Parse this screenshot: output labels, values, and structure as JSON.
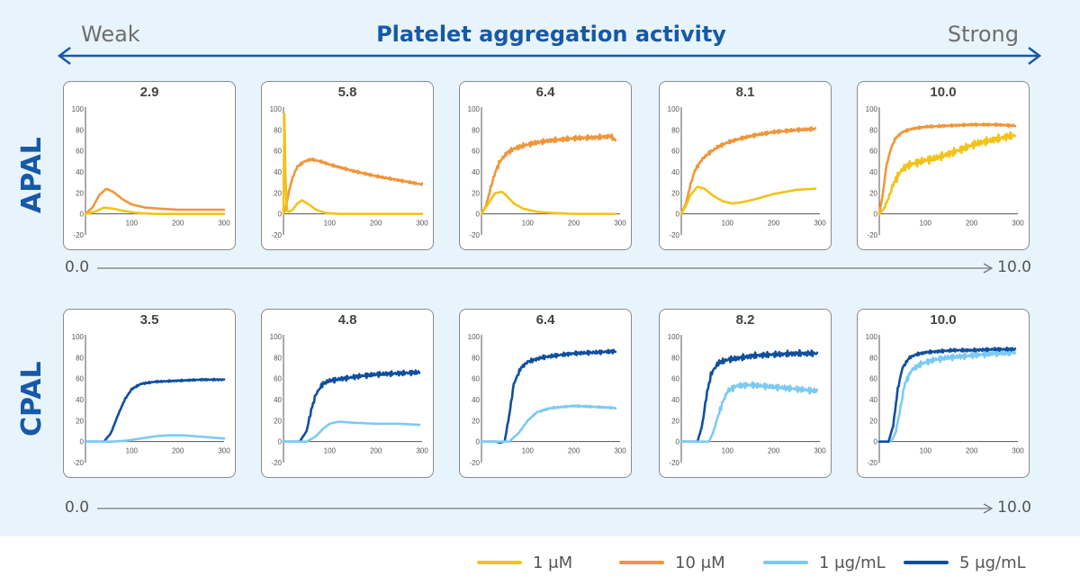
{
  "header": {
    "left": "Weak",
    "title": "Platelet aggregation activity",
    "right": "Strong"
  },
  "rows": [
    {
      "label": "APAL",
      "scale_min": "0.0",
      "scale_max": "10.0"
    },
    {
      "label": "CPAL",
      "scale_min": "0.0",
      "scale_max": "10.0"
    }
  ],
  "legend": [
    {
      "name": "1 μM",
      "color": "#f2c318"
    },
    {
      "name": "10 μM",
      "color": "#f0963a"
    },
    {
      "name": "1 μg/mL",
      "color": "#7ccaf2"
    },
    {
      "name": "5 μg/mL",
      "color": "#104f9e"
    }
  ],
  "chart_data": [
    {
      "type": "line",
      "row": "APAL",
      "title": "2.9",
      "xlim": [
        0,
        300
      ],
      "ylim": [
        -20,
        100
      ],
      "xticks": [
        100,
        200,
        300
      ],
      "yticks": [
        -20,
        0,
        20,
        40,
        60,
        80,
        100
      ],
      "series": [
        {
          "name": "10 μM",
          "color": "#f0963a",
          "x": [
            0,
            15,
            30,
            45,
            60,
            80,
            100,
            130,
            160,
            200,
            250,
            300
          ],
          "y": [
            0,
            6,
            18,
            24,
            21,
            14,
            9,
            6,
            5,
            4,
            4,
            4
          ],
          "noise": 0
        },
        {
          "name": "1 μM",
          "color": "#f2c318",
          "x": [
            0,
            20,
            40,
            60,
            80,
            110,
            150,
            200,
            300
          ],
          "y": [
            0,
            2,
            6,
            5,
            3,
            1,
            0,
            0,
            0
          ],
          "noise": 0
        }
      ]
    },
    {
      "type": "line",
      "row": "APAL",
      "title": "5.8",
      "xlim": [
        0,
        300
      ],
      "ylim": [
        -20,
        100
      ],
      "xticks": [
        100,
        200,
        300
      ],
      "yticks": [
        -20,
        0,
        20,
        40,
        60,
        80,
        100
      ],
      "series": [
        {
          "name": "10 μM",
          "color": "#f0963a",
          "x": [
            0,
            5,
            12,
            20,
            30,
            45,
            60,
            80,
            100,
            150,
            200,
            250,
            300
          ],
          "y": [
            0,
            6,
            22,
            35,
            45,
            50,
            52,
            50,
            47,
            41,
            36,
            32,
            28
          ],
          "noise": 1.2
        },
        {
          "name": "1 μM",
          "color": "#f2c318",
          "x": [
            0,
            2,
            4,
            7,
            12,
            20,
            30,
            40,
            55,
            70,
            90,
            120,
            160,
            220,
            300
          ],
          "y": [
            0,
            95,
            40,
            3,
            2,
            4,
            10,
            13,
            9,
            4,
            1,
            0,
            0,
            0,
            0
          ],
          "noise": 0
        }
      ]
    },
    {
      "type": "line",
      "row": "APAL",
      "title": "6.4",
      "xlim": [
        0,
        300
      ],
      "ylim": [
        -20,
        100
      ],
      "xticks": [
        100,
        200,
        300
      ],
      "yticks": [
        -20,
        0,
        20,
        40,
        60,
        80,
        100
      ],
      "series": [
        {
          "name": "10 μM",
          "color": "#f0963a",
          "x": [
            0,
            10,
            20,
            30,
            40,
            55,
            70,
            90,
            120,
            150,
            200,
            250,
            280,
            290
          ],
          "y": [
            0,
            8,
            25,
            40,
            50,
            58,
            62,
            65,
            68,
            70,
            72,
            73,
            74,
            70
          ],
          "noise": 2.5
        },
        {
          "name": "1 μM",
          "color": "#f2c318",
          "x": [
            0,
            15,
            30,
            45,
            55,
            70,
            90,
            120,
            150,
            200,
            250,
            290
          ],
          "y": [
            0,
            10,
            20,
            21,
            17,
            10,
            5,
            2,
            1,
            0,
            0,
            0
          ],
          "noise": 0
        }
      ]
    },
    {
      "type": "line",
      "row": "APAL",
      "title": "8.1",
      "xlim": [
        0,
        300
      ],
      "ylim": [
        -20,
        100
      ],
      "xticks": [
        100,
        200,
        300
      ],
      "yticks": [
        -20,
        0,
        20,
        40,
        60,
        80,
        100
      ],
      "series": [
        {
          "name": "10 μM",
          "color": "#f0963a",
          "x": [
            0,
            10,
            20,
            30,
            45,
            60,
            80,
            100,
            130,
            160,
            200,
            250,
            290
          ],
          "y": [
            0,
            10,
            28,
            42,
            52,
            58,
            64,
            68,
            72,
            75,
            78,
            80,
            81
          ],
          "noise": 1.8
        },
        {
          "name": "1 μM",
          "color": "#f2c318",
          "x": [
            0,
            10,
            20,
            35,
            50,
            70,
            90,
            110,
            130,
            160,
            200,
            250,
            290
          ],
          "y": [
            0,
            8,
            18,
            26,
            24,
            17,
            12,
            10,
            11,
            14,
            19,
            23,
            24
          ],
          "noise": 0
        }
      ]
    },
    {
      "type": "line",
      "row": "APAL",
      "title": "10.0",
      "xlim": [
        0,
        300
      ],
      "ylim": [
        -20,
        100
      ],
      "xticks": [
        100,
        200,
        300
      ],
      "yticks": [
        -20,
        0,
        20,
        40,
        60,
        80,
        100
      ],
      "series": [
        {
          "name": "10 μM",
          "color": "#f0963a",
          "x": [
            0,
            8,
            15,
            25,
            35,
            50,
            70,
            100,
            150,
            200,
            250,
            295
          ],
          "y": [
            0,
            20,
            45,
            62,
            72,
            78,
            81,
            83,
            84,
            85,
            85,
            84
          ],
          "noise": 1.2
        },
        {
          "name": "1 μM",
          "color": "#f2c318",
          "x": [
            0,
            10,
            20,
            30,
            45,
            60,
            90,
            120,
            150,
            180,
            210,
            240,
            270,
            295
          ],
          "y": [
            0,
            5,
            15,
            28,
            40,
            46,
            50,
            53,
            57,
            62,
            67,
            70,
            73,
            75
          ],
          "noise": 4
        }
      ]
    },
    {
      "type": "line",
      "row": "CPAL",
      "title": "3.5",
      "xlim": [
        0,
        300
      ],
      "ylim": [
        -20,
        100
      ],
      "xticks": [
        100,
        200,
        300
      ],
      "yticks": [
        -20,
        0,
        20,
        40,
        60,
        80,
        100
      ],
      "series": [
        {
          "name": "5 μg/mL",
          "color": "#104f9e",
          "x": [
            0,
            40,
            55,
            70,
            85,
            100,
            120,
            150,
            200,
            250,
            300
          ],
          "y": [
            0,
            0,
            8,
            25,
            40,
            50,
            55,
            57,
            58,
            59,
            59
          ],
          "noise": 0.8
        },
        {
          "name": "1 μg/mL",
          "color": "#7ccaf2",
          "x": [
            0,
            60,
            90,
            120,
            150,
            180,
            210,
            240,
            270,
            300
          ],
          "y": [
            0,
            0,
            1,
            3,
            5,
            6,
            6,
            5,
            4,
            3
          ],
          "noise": 0
        }
      ]
    },
    {
      "type": "line",
      "row": "CPAL",
      "title": "4.8",
      "xlim": [
        0,
        300
      ],
      "ylim": [
        -20,
        100
      ],
      "xticks": [
        100,
        200,
        300
      ],
      "yticks": [
        -20,
        0,
        20,
        40,
        60,
        80,
        100
      ],
      "series": [
        {
          "name": "5 μg/mL",
          "color": "#104f9e",
          "x": [
            0,
            35,
            50,
            60,
            70,
            85,
            100,
            130,
            160,
            200,
            250,
            295
          ],
          "y": [
            0,
            0,
            10,
            30,
            45,
            55,
            58,
            60,
            62,
            64,
            65,
            66
          ],
          "noise": 2.5
        },
        {
          "name": "1 μg/mL",
          "color": "#7ccaf2",
          "x": [
            0,
            50,
            70,
            85,
            100,
            120,
            150,
            200,
            250,
            295
          ],
          "y": [
            0,
            0,
            5,
            12,
            17,
            19,
            18,
            17,
            17,
            16
          ],
          "noise": 0
        }
      ]
    },
    {
      "type": "line",
      "row": "CPAL",
      "title": "6.4",
      "xlim": [
        0,
        300
      ],
      "ylim": [
        -20,
        100
      ],
      "xticks": [
        100,
        200,
        300
      ],
      "yticks": [
        -20,
        0,
        20,
        40,
        60,
        80,
        100
      ],
      "series": [
        {
          "name": "5 μg/mL",
          "color": "#104f9e",
          "x": [
            0,
            30,
            40,
            50,
            60,
            70,
            85,
            100,
            130,
            160,
            200,
            250,
            290
          ],
          "y": [
            0,
            0,
            -1,
            0,
            25,
            55,
            70,
            76,
            80,
            82,
            84,
            85,
            86
          ],
          "noise": 2
        },
        {
          "name": "1 μg/mL",
          "color": "#7ccaf2",
          "x": [
            0,
            60,
            80,
            100,
            120,
            150,
            200,
            250,
            290
          ],
          "y": [
            0,
            0,
            8,
            20,
            28,
            32,
            34,
            33,
            32
          ],
          "noise": 0.8
        }
      ]
    },
    {
      "type": "line",
      "row": "CPAL",
      "title": "8.2",
      "xlim": [
        0,
        300
      ],
      "ylim": [
        -20,
        100
      ],
      "xticks": [
        100,
        200,
        300
      ],
      "yticks": [
        -20,
        0,
        20,
        40,
        60,
        80,
        100
      ],
      "series": [
        {
          "name": "5 μg/mL",
          "color": "#104f9e",
          "x": [
            0,
            35,
            45,
            55,
            65,
            80,
            100,
            130,
            160,
            200,
            250,
            295
          ],
          "y": [
            0,
            0,
            15,
            45,
            65,
            75,
            78,
            80,
            82,
            83,
            84,
            84
          ],
          "noise": 3
        },
        {
          "name": "1 μg/mL",
          "color": "#7ccaf2",
          "x": [
            0,
            60,
            70,
            80,
            90,
            100,
            120,
            150,
            200,
            250,
            295
          ],
          "y": [
            0,
            0,
            10,
            25,
            38,
            48,
            53,
            54,
            52,
            50,
            48
          ],
          "noise": 3
        }
      ]
    },
    {
      "type": "line",
      "row": "CPAL",
      "title": "10.0",
      "xlim": [
        0,
        300
      ],
      "ylim": [
        -20,
        100
      ],
      "xticks": [
        100,
        200,
        300
      ],
      "yticks": [
        -20,
        0,
        20,
        40,
        60,
        80,
        100
      ],
      "series": [
        {
          "name": "1 μg/mL",
          "color": "#7ccaf2",
          "x": [
            0,
            25,
            35,
            45,
            55,
            70,
            90,
            120,
            150,
            200,
            250,
            295
          ],
          "y": [
            0,
            0,
            8,
            30,
            55,
            68,
            74,
            78,
            80,
            82,
            84,
            85
          ],
          "noise": 3
        },
        {
          "name": "5 μg/mL",
          "color": "#104f9e",
          "x": [
            0,
            20,
            30,
            40,
            50,
            65,
            80,
            100,
            130,
            160,
            200,
            250,
            295
          ],
          "y": [
            0,
            0,
            15,
            50,
            70,
            80,
            83,
            85,
            86,
            87,
            87,
            88,
            88
          ],
          "noise": 1.5
        }
      ]
    }
  ]
}
